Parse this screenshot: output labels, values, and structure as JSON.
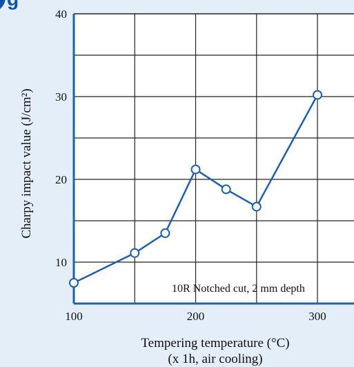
{
  "header": {
    "fragment_text": "g",
    "color": "#0d55a6"
  },
  "chart_data": {
    "type": "line",
    "title": "",
    "xlabel": "Tempering temperature (°C)",
    "xlabel_sub": "(x 1h, air cooling)",
    "ylabel": "Charpy impact value (J/cm²)",
    "xlim": [
      100,
      330
    ],
    "ylim": [
      5,
      40
    ],
    "x_ticks": [
      100,
      200,
      300
    ],
    "x_tick_labels": [
      "100",
      "200",
      "300"
    ],
    "x_gridlines": [
      150,
      200,
      250,
      300
    ],
    "y_ticks": [
      10,
      20,
      30,
      40
    ],
    "y_tick_labels": [
      "10",
      "20",
      "30",
      "40"
    ],
    "y_gridlines": [
      10,
      15,
      20,
      25,
      30,
      35
    ],
    "grid": true,
    "line_color": "#1f5fa8",
    "series": [
      {
        "x": [
          100,
          150,
          175,
          200,
          225,
          250,
          300
        ],
        "y": [
          7.5,
          11.1,
          13.5,
          21.2,
          18.8,
          16.7,
          30.2
        ]
      }
    ],
    "annotation": "10R Notched cut, 2 mm depth"
  }
}
